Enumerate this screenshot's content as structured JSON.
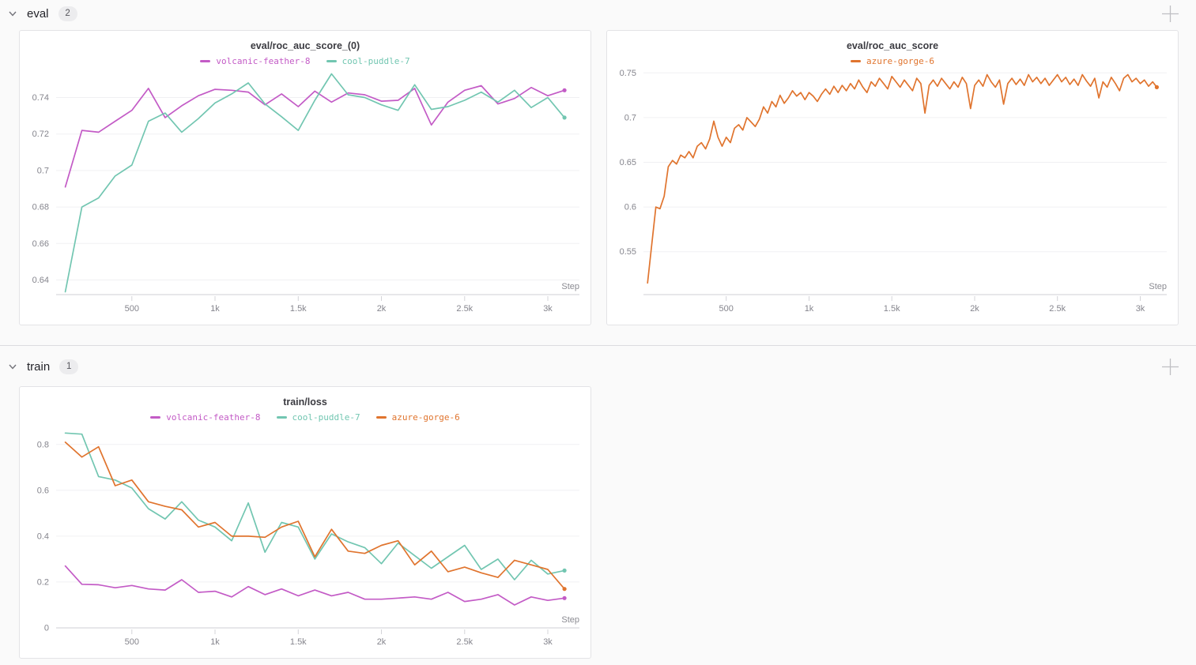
{
  "sections": [
    {
      "label": "eval",
      "badge": "2"
    },
    {
      "label": "train",
      "badge": "1"
    }
  ],
  "icons": {
    "section_collapse": "chevron-down-icon",
    "add_panel": "plus-icon"
  },
  "colors": {
    "volcanic_feather_8": "#C35BC6",
    "cool_puddle_7": "#72C6B1",
    "azure_gorge_6": "#E0742E",
    "grid": "#f0f0f3",
    "axis": "#dfdfe3",
    "tick": "#d4d4d8"
  },
  "chart_data": [
    {
      "type": "line",
      "title": "eval/roc_auc_score_(0)",
      "xlabel": "Step",
      "legend_position": "top",
      "grid": "horizontal",
      "xlim": [
        45,
        3190
      ],
      "ylim": [
        0.632,
        0.7545
      ],
      "x_tick_values": [
        500,
        1000,
        1500,
        2000,
        2500,
        3000
      ],
      "x_tick_labels": [
        "500",
        "1k",
        "1.5k",
        "2k",
        "2.5k",
        "3k"
      ],
      "y_tick_values": [
        0.64,
        0.66,
        0.68,
        0.7,
        0.72,
        0.74
      ],
      "y_tick_labels": [
        "0.64",
        "0.66",
        "0.68",
        "0.7",
        "0.72",
        "0.74"
      ],
      "x_start": 100,
      "x_interval": 100,
      "series": [
        {
          "name": "volcanic-feather-8",
          "color": "#C35BC6",
          "values": [
            0.691,
            0.722,
            0.721,
            0.727,
            0.733,
            0.745,
            0.729,
            0.7355,
            0.741,
            0.7445,
            0.744,
            0.743,
            0.736,
            0.742,
            0.735,
            0.7435,
            0.7375,
            0.7425,
            0.7415,
            0.738,
            0.7385,
            0.745,
            0.725,
            0.7375,
            0.744,
            0.7465,
            0.7365,
            0.7395,
            0.7455,
            0.741,
            0.744
          ]
        },
        {
          "name": "cool-puddle-7",
          "color": "#72C6B1",
          "values": [
            0.6335,
            0.68,
            0.685,
            0.697,
            0.703,
            0.727,
            0.7315,
            0.721,
            0.7285,
            0.737,
            0.742,
            0.748,
            0.7365,
            0.7295,
            0.722,
            0.7385,
            0.753,
            0.7415,
            0.74,
            0.736,
            0.733,
            0.747,
            0.7335,
            0.735,
            0.7385,
            0.743,
            0.7375,
            0.744,
            0.7345,
            0.74,
            0.729
          ]
        }
      ]
    },
    {
      "type": "line",
      "title": "eval/roc_auc_score",
      "xlabel": "Step",
      "legend_position": "top",
      "grid": "horizontal",
      "xlim": [
        0,
        3160
      ],
      "ylim": [
        0.502,
        0.752
      ],
      "x_tick_values": [
        500,
        1000,
        1500,
        2000,
        2500,
        3000
      ],
      "x_tick_labels": [
        "500",
        "1k",
        "1.5k",
        "2k",
        "2.5k",
        "3k"
      ],
      "y_tick_values": [
        0.55,
        0.6,
        0.65,
        0.7,
        0.75
      ],
      "y_tick_labels": [
        "0.55",
        "0.6",
        "0.65",
        "0.7",
        "0.75"
      ],
      "x_start": 25,
      "x_interval": 25,
      "series": [
        {
          "name": "azure-gorge-6",
          "color": "#E0742E",
          "values": [
            0.515,
            0.558,
            0.6,
            0.598,
            0.612,
            0.645,
            0.652,
            0.648,
            0.658,
            0.655,
            0.662,
            0.655,
            0.668,
            0.672,
            0.665,
            0.676,
            0.696,
            0.678,
            0.668,
            0.678,
            0.672,
            0.688,
            0.692,
            0.686,
            0.7,
            0.695,
            0.69,
            0.698,
            0.712,
            0.705,
            0.718,
            0.712,
            0.725,
            0.716,
            0.722,
            0.73,
            0.724,
            0.728,
            0.72,
            0.728,
            0.724,
            0.718,
            0.726,
            0.732,
            0.726,
            0.735,
            0.728,
            0.736,
            0.73,
            0.738,
            0.732,
            0.742,
            0.734,
            0.728,
            0.74,
            0.735,
            0.744,
            0.738,
            0.732,
            0.746,
            0.74,
            0.734,
            0.742,
            0.736,
            0.73,
            0.744,
            0.738,
            0.705,
            0.736,
            0.742,
            0.735,
            0.744,
            0.738,
            0.732,
            0.74,
            0.734,
            0.745,
            0.738,
            0.71,
            0.736,
            0.742,
            0.735,
            0.748,
            0.74,
            0.734,
            0.742,
            0.715,
            0.738,
            0.744,
            0.737,
            0.743,
            0.736,
            0.748,
            0.74,
            0.745,
            0.738,
            0.744,
            0.736,
            0.742,
            0.748,
            0.74,
            0.745,
            0.737,
            0.743,
            0.736,
            0.748,
            0.741,
            0.735,
            0.744,
            0.722,
            0.74,
            0.734,
            0.745,
            0.738,
            0.73,
            0.744,
            0.748,
            0.74,
            0.744,
            0.738,
            0.742,
            0.735,
            0.74,
            0.734
          ]
        }
      ]
    },
    {
      "type": "line",
      "title": "train/loss",
      "xlabel": "Step",
      "legend_position": "top",
      "grid": "horizontal",
      "xlim": [
        45,
        3190
      ],
      "ylim": [
        0,
        0.875
      ],
      "x_tick_values": [
        500,
        1000,
        1500,
        2000,
        2500,
        3000
      ],
      "x_tick_labels": [
        "500",
        "1k",
        "1.5k",
        "2k",
        "2.5k",
        "3k"
      ],
      "y_tick_values": [
        0,
        0.2,
        0.4,
        0.6,
        0.8
      ],
      "y_tick_labels": [
        "0",
        "0.2",
        "0.4",
        "0.6",
        "0.8"
      ],
      "x_start": 100,
      "x_interval": 100,
      "series": [
        {
          "name": "volcanic-feather-8",
          "color": "#C35BC6",
          "values": [
            0.27,
            0.19,
            0.188,
            0.175,
            0.185,
            0.17,
            0.165,
            0.21,
            0.155,
            0.16,
            0.135,
            0.18,
            0.145,
            0.17,
            0.14,
            0.165,
            0.14,
            0.155,
            0.125,
            0.125,
            0.13,
            0.135,
            0.125,
            0.155,
            0.115,
            0.125,
            0.145,
            0.1,
            0.135,
            0.12,
            0.13
          ]
        },
        {
          "name": "cool-puddle-7",
          "color": "#72C6B1",
          "values": [
            0.85,
            0.845,
            0.66,
            0.645,
            0.61,
            0.52,
            0.475,
            0.55,
            0.47,
            0.44,
            0.38,
            0.545,
            0.33,
            0.46,
            0.44,
            0.3,
            0.41,
            0.375,
            0.35,
            0.28,
            0.37,
            0.315,
            0.26,
            0.31,
            0.36,
            0.255,
            0.3,
            0.21,
            0.295,
            0.235,
            0.25
          ]
        },
        {
          "name": "azure-gorge-6",
          "color": "#E0742E",
          "values": [
            0.81,
            0.745,
            0.79,
            0.62,
            0.645,
            0.55,
            0.53,
            0.515,
            0.44,
            0.46,
            0.4,
            0.4,
            0.395,
            0.44,
            0.465,
            0.31,
            0.43,
            0.335,
            0.325,
            0.36,
            0.38,
            0.275,
            0.335,
            0.245,
            0.265,
            0.24,
            0.22,
            0.295,
            0.275,
            0.255,
            0.17
          ]
        }
      ]
    }
  ]
}
